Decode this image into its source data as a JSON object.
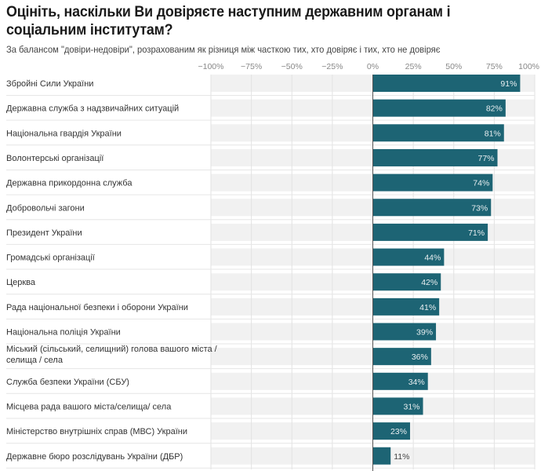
{
  "header": {
    "title": "Оцініть, наскільки Ви довіряєте наступним державним органам і соціальним інститутам?",
    "subtitle": "За балансом \"довіри-недовіри\", розрахованим як різниця між часткою тих, хто довіряє і тих, хто не довіряє"
  },
  "chart_data": {
    "type": "bar",
    "orientation": "horizontal",
    "title": "Оцініть, наскільки Ви довіряєте наступним державним органам і соціальним інститутам?",
    "subtitle": "За балансом \"довіри-недовіри\", розрахованим як різниця між часткою тих, хто довіряє і тих, хто не довіряє",
    "xlim": [
      -100,
      100
    ],
    "x_ticks": [
      -100,
      -75,
      -50,
      -25,
      0,
      25,
      50,
      75,
      100
    ],
    "x_tick_labels": [
      "−100%",
      "−75%",
      "−50%",
      "−25%",
      "0%",
      "25%",
      "50%",
      "75%",
      "100%"
    ],
    "grid": true,
    "legend": "none",
    "bar_color": "#1d6474",
    "background_band_color": "#f1f1f1",
    "categories": [
      "Збройні Сили України",
      "Державна служба з надзвичайних ситуацій",
      "Національна гвардія України",
      "Волонтерські організації",
      "Державна прикордонна служба",
      "Добровольчі загони",
      "Президент України",
      "Громадські організації",
      "Церква",
      "Рада національної безпеки і оборони України",
      "Національна поліція України",
      "Міський (сільський, селищний) голова вашого міста / селища / села",
      "Служба безпеки України (СБУ)",
      "Місцева рада вашого міста/селища/ села",
      "Міністерство внутрішніх справ (МВС) України",
      "Державне бюро розслідувань України (ДБР)"
    ],
    "values": [
      91,
      82,
      81,
      77,
      74,
      73,
      71,
      44,
      42,
      41,
      39,
      36,
      34,
      31,
      23,
      11
    ],
    "value_labels": [
      "91%",
      "82%",
      "81%",
      "77%",
      "74%",
      "73%",
      "71%",
      "44%",
      "42%",
      "41%",
      "39%",
      "36%",
      "34%",
      "31%",
      "23%",
      "11%"
    ]
  }
}
